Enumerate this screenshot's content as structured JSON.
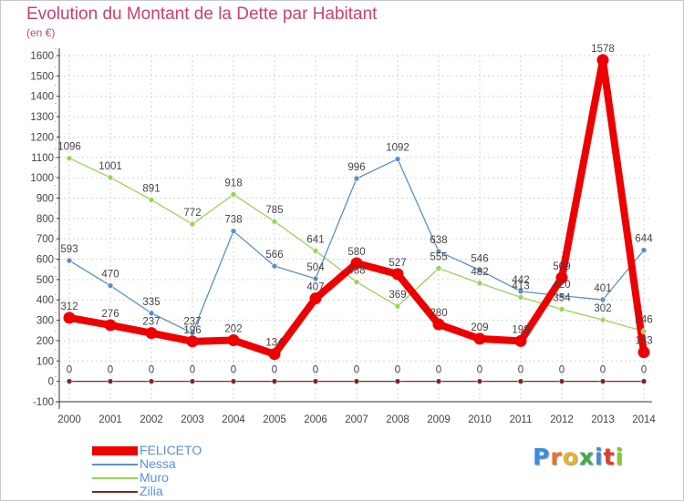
{
  "title": "Evolution du Montant de la Dette par Habitant",
  "unit": "(en €)",
  "logo_text": "Proxiti",
  "colors": {
    "title": "#c8416e",
    "FELICETO": "#ee0000",
    "Nessa": "#5b8fc8",
    "Muro": "#99d45a",
    "Zilia": "#7a2828",
    "legend_text": "#5b8fdd"
  },
  "chart_data": {
    "type": "line",
    "title": "Evolution du Montant de la Dette par Habitant",
    "ylabel": "(en €)",
    "xlabel": "",
    "ylim": [
      -100,
      1600
    ],
    "yticks": [
      -100,
      0,
      100,
      200,
      300,
      400,
      500,
      600,
      700,
      800,
      900,
      1000,
      1100,
      1200,
      1300,
      1400,
      1500,
      1600
    ],
    "categories": [
      "2000",
      "2001",
      "2002",
      "2003",
      "2004",
      "2005",
      "2006",
      "2007",
      "2008",
      "2009",
      "2010",
      "2011",
      "2012",
      "2013",
      "2014"
    ],
    "grid": true,
    "legend_position": "bottom-left",
    "series": [
      {
        "name": "FELICETO",
        "values": [
          312,
          276,
          237,
          196,
          202,
          134,
          407,
          580,
          527,
          280,
          209,
          198,
          509,
          1578,
          143
        ],
        "labels": [
          "312",
          "276",
          "237",
          "196",
          "202",
          "134",
          "407",
          "580",
          "527",
          "280",
          "209",
          "198",
          "509",
          "1578",
          "143"
        ]
      },
      {
        "name": "Nessa",
        "values": [
          593,
          470,
          335,
          237,
          738,
          566,
          504,
          996,
          1092,
          638,
          546,
          442,
          420,
          401,
          644
        ],
        "labels": [
          "593",
          "470",
          "335",
          "237",
          "738",
          "566",
          "504",
          "996",
          "1092",
          "638",
          "546",
          "442",
          "420",
          "401",
          "644"
        ]
      },
      {
        "name": "Muro",
        "values": [
          1096,
          1001,
          891,
          772,
          918,
          785,
          641,
          488,
          369,
          555,
          482,
          413,
          354,
          302,
          246
        ],
        "labels": [
          "1096",
          "1001",
          "891",
          "772",
          "918",
          "785",
          "641",
          "488",
          "369",
          "555",
          "482",
          "413",
          "354",
          "302",
          "246"
        ]
      },
      {
        "name": "Zilia",
        "values": [
          0,
          0,
          0,
          0,
          0,
          0,
          0,
          0,
          0,
          0,
          0,
          0,
          0,
          0,
          0
        ],
        "labels": [
          "0",
          "0",
          "0",
          "0",
          "0",
          "0",
          "0",
          "0",
          "0",
          "0",
          "0",
          "0",
          "0",
          "0",
          "0"
        ]
      }
    ]
  }
}
